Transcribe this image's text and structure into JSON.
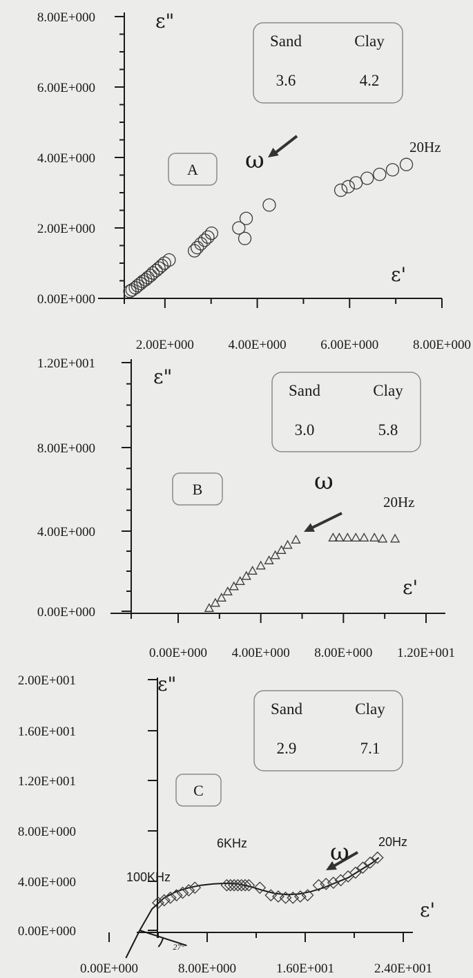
{
  "chart_data": [
    {
      "type": "scatter",
      "panel_label": "A",
      "y_axis_symbol": "ε\"",
      "x_axis_symbol": "ε'",
      "xlim": [
        1.0,
        8.0
      ],
      "ylim": [
        0.0,
        8.0
      ],
      "x_ticks": [
        2.0,
        4.0,
        6.0,
        8.0
      ],
      "x_tick_labels": [
        "2.00E+000",
        "4.00E+000",
        "6.00E+000",
        "8.00E+000"
      ],
      "y_ticks": [
        0.0,
        2.0,
        4.0,
        6.0,
        8.0
      ],
      "y_tick_labels": [
        "0.00E+000",
        "2.00E+000",
        "4.00E+000",
        "6.00E+000",
        "8.00E+000"
      ],
      "marker": "circle",
      "composition": {
        "headers": [
          "Sand",
          "Clay"
        ],
        "values": [
          "3.6",
          "4.2"
        ]
      },
      "frequency_label": "20Hz",
      "direction_symbol": "ω",
      "series": [
        {
          "x": [
            1.24,
            1.29,
            1.36,
            1.41,
            1.47,
            1.52,
            1.58,
            1.63,
            1.69,
            1.74,
            1.81,
            1.87,
            1.93,
            1.99,
            2.09,
            2.64,
            2.7,
            2.78,
            2.86,
            2.93,
            3.01,
            3.6,
            3.76,
            3.73,
            4.26,
            5.81,
            5.97,
            6.14,
            6.38,
            6.65,
            6.93,
            7.23
          ],
          "y": [
            0.2,
            0.24,
            0.3,
            0.36,
            0.42,
            0.48,
            0.53,
            0.59,
            0.65,
            0.72,
            0.79,
            0.86,
            0.93,
            1.0,
            1.09,
            1.35,
            1.44,
            1.55,
            1.65,
            1.74,
            1.85,
            2.0,
            2.27,
            1.7,
            2.65,
            3.07,
            3.17,
            3.28,
            3.41,
            3.52,
            3.65,
            3.8
          ]
        }
      ]
    },
    {
      "type": "scatter",
      "panel_label": "B",
      "y_axis_symbol": "ε\"",
      "x_axis_symbol": "ε'",
      "xlim": [
        0.0,
        12.0
      ],
      "ylim": [
        0.0,
        12.0
      ],
      "x_ticks": [
        0.0,
        4.0,
        8.0,
        12.0
      ],
      "x_tick_labels": [
        "0.00E+000",
        "4.00E+000",
        "8.00E+000",
        "1.20E+001"
      ],
      "y_ticks": [
        0.0,
        4.0,
        8.0,
        12.0
      ],
      "y_tick_labels": [
        "0.00E+000",
        "4.00E+000",
        "8.00E+000",
        "1.20E+001"
      ],
      "marker": "triangle",
      "composition": {
        "headers": [
          "Sand",
          "Clay"
        ],
        "values": [
          "3.0",
          "5.8"
        ]
      },
      "frequency_label": "20Hz",
      "direction_symbol": "ω",
      "series": [
        {
          "x": [
            1.5,
            1.8,
            2.1,
            2.4,
            2.7,
            3.0,
            3.3,
            3.6,
            4.0,
            4.4,
            4.7,
            5.0,
            5.3,
            5.7,
            7.5,
            7.8,
            8.2,
            8.6,
            9.0,
            9.5,
            9.9,
            10.5
          ],
          "y": [
            0.15,
            0.4,
            0.65,
            0.95,
            1.2,
            1.45,
            1.7,
            1.95,
            2.2,
            2.45,
            2.7,
            2.95,
            3.2,
            3.45,
            3.55,
            3.55,
            3.55,
            3.55,
            3.55,
            3.55,
            3.5,
            3.5
          ]
        }
      ]
    },
    {
      "type": "scatter",
      "panel_label": "C",
      "y_axis_symbol": "ε\"",
      "x_axis_symbol": "ε'",
      "xlim": [
        -4.0,
        24.0
      ],
      "ylim": [
        0.0,
        20.0
      ],
      "x_ticks": [
        0.0,
        8.0,
        16.0,
        24.0
      ],
      "x_tick_labels": [
        "0.00E+000",
        "8.00E+000",
        "1.60E+001",
        "2.40E+001"
      ],
      "y_ticks": [
        0.0,
        4.0,
        8.0,
        12.0,
        16.0,
        20.0
      ],
      "y_tick_labels": [
        "0.00E+000",
        "4.00E+000",
        "8.00E+000",
        "1.20E+001",
        "1.60E+001",
        "2.00E+001"
      ],
      "marker": "diamond",
      "composition": {
        "headers": [
          "Sand",
          "Clay"
        ],
        "values": [
          "2.9",
          "7.1"
        ]
      },
      "frequency_labels": [
        "100KHz",
        "6KHz",
        "20Hz"
      ],
      "direction_symbol": "ω",
      "angle_label": "27°",
      "series": [
        {
          "x": [
            4.0,
            4.5,
            5.0,
            5.5,
            6.0,
            6.5,
            7.0,
            9.6,
            9.9,
            10.2,
            10.5,
            10.8,
            11.1,
            11.4,
            12.3,
            13.2,
            13.8,
            14.4,
            15.0,
            15.6,
            16.2,
            17.1,
            17.7,
            18.3,
            18.9,
            19.5,
            20.1,
            20.7,
            21.3,
            21.9
          ],
          "y": [
            2.2,
            2.4,
            2.6,
            2.8,
            3.0,
            3.2,
            3.4,
            3.6,
            3.6,
            3.6,
            3.6,
            3.6,
            3.6,
            3.6,
            3.4,
            2.8,
            2.7,
            2.6,
            2.6,
            2.7,
            2.8,
            3.6,
            3.7,
            3.8,
            4.0,
            4.3,
            4.6,
            5.0,
            5.4,
            5.8
          ]
        }
      ],
      "fit_curve": {
        "x": [
          2.5,
          3.5,
          4.5,
          5.5,
          6.5,
          7.5,
          8.5,
          9.5,
          10.5,
          11.5,
          12.5,
          13.5,
          14.5,
          15.5,
          16.5,
          17.5,
          18.5,
          19.5,
          20.5,
          21.5,
          22.0
        ],
        "y": [
          0.0,
          1.7,
          2.6,
          3.1,
          3.4,
          3.6,
          3.7,
          3.75,
          3.7,
          3.5,
          3.2,
          2.95,
          2.85,
          2.9,
          3.1,
          3.4,
          3.8,
          4.2,
          4.8,
          5.4,
          5.8
        ]
      }
    }
  ]
}
